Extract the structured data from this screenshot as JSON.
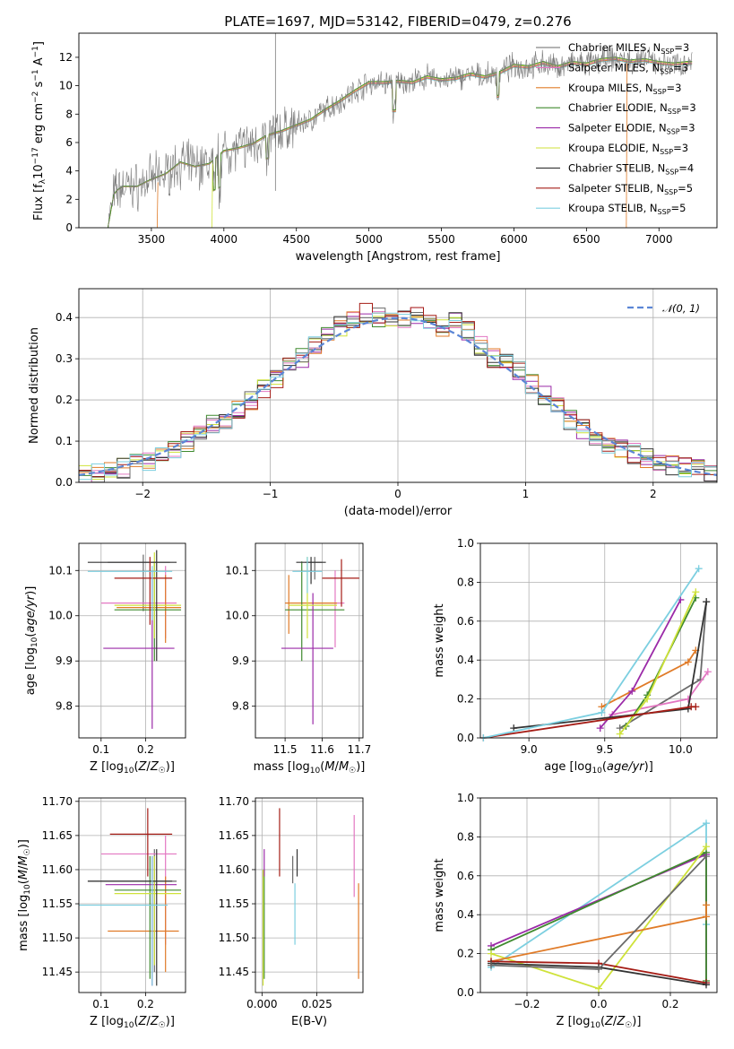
{
  "colors": {
    "Chabrier MILES": "#6a6a6a",
    "Salpeter MILES": "#e377c2",
    "Kroupa MILES": "#e07b28",
    "Chabrier ELODIE": "#3f8a2e",
    "Salpeter ELODIE": "#9b2aa8",
    "Kroupa ELODIE": "#cfe23a",
    "Chabrier STELIB": "#333333",
    "Salpeter STELIB": "#a51d16",
    "Kroupa STELIB": "#7ccfe0",
    "normal": "#5b86d6"
  },
  "chart_data": [
    {
      "type": "line",
      "title": "PLATE=1697, MJD=53142, FIBERID=0479, z=0.276",
      "xlabel": "wavelength [Angstrom, rest frame]",
      "ylabel": "Flux [f_λ 10^-17 erg cm^-2 s^-1 A^-1]",
      "xlim": [
        3000,
        7400
      ],
      "ylim": [
        0,
        13.7
      ],
      "xticks": [
        3500,
        4000,
        4500,
        5000,
        5500,
        6000,
        6500,
        7000
      ],
      "yticks": [
        0,
        2,
        4,
        6,
        8,
        10,
        12
      ],
      "legend_position": "right",
      "legend": [
        {
          "name": "Chabrier MILES",
          "sub": "SSP",
          "n": "3"
        },
        {
          "name": "Salpeter MILES",
          "sub": "SSP",
          "n": "3"
        },
        {
          "name": "Kroupa MILES",
          "sub": "SSP",
          "n": "3"
        },
        {
          "name": "Chabrier ELODIE",
          "sub": "SSP",
          "n": "3"
        },
        {
          "name": "Salpeter ELODIE",
          "sub": "SSP",
          "n": "3"
        },
        {
          "name": "Kroupa ELODIE",
          "sub": "SSP",
          "n": "3"
        },
        {
          "name": "Chabrier STELIB",
          "sub": "SSP",
          "n": "4"
        },
        {
          "name": "Salpeter STELIB",
          "sub": "SSP",
          "n": "5"
        },
        {
          "name": "Kroupa STELIB",
          "sub": "SSP",
          "n": "5"
        }
      ],
      "series": [
        {
          "name": "data",
          "x": [
            3200,
            3240,
            3260,
            3300,
            3400,
            3500,
            3600,
            3700,
            3800,
            3900,
            4000,
            4100,
            4200,
            4300,
            4400,
            4500,
            4600,
            4700,
            4800,
            4900,
            5000,
            5100,
            5200,
            5300,
            5400,
            5500,
            5600,
            5700,
            5800,
            5900,
            6000,
            6100,
            6200,
            6300,
            6400,
            6500,
            6600,
            6700,
            6800,
            6900,
            7000,
            7100,
            7200
          ],
          "y": [
            0,
            2.3,
            2.6,
            2.9,
            2.9,
            3.4,
            3.8,
            4.6,
            4.3,
            4.5,
            5.4,
            5.6,
            5.9,
            6.5,
            6.8,
            7.2,
            7.6,
            8.3,
            8.9,
            9.6,
            10.2,
            10.2,
            10.3,
            10.2,
            10.6,
            10.4,
            10.5,
            10.8,
            10.6,
            10.9,
            11.4,
            11.3,
            11.6,
            11.3,
            11.6,
            11.5,
            11.8,
            11.9,
            11.7,
            11.8,
            11.6,
            11.5,
            11.6
          ]
        }
      ]
    },
    {
      "type": "step",
      "xlabel": "(data-model)/error",
      "ylabel": "Normed distribution",
      "xlim": [
        -2.5,
        2.5
      ],
      "ylim": [
        0,
        0.47
      ],
      "xticks": [
        -2,
        -1,
        0,
        1,
        2
      ],
      "yticks": [
        0.0,
        0.1,
        0.2,
        0.3,
        0.4
      ],
      "legend": "𝒩(0, 1)",
      "legend_position": "top-right",
      "bin_edges": [
        -2.5,
        -2.4,
        -2.3,
        -2.2,
        -2.1,
        -2.0,
        -1.9,
        -1.8,
        -1.7,
        -1.6,
        -1.5,
        -1.4,
        -1.3,
        -1.2,
        -1.1,
        -1.0,
        -0.9,
        -0.8,
        -0.7,
        -0.6,
        -0.5,
        -0.4,
        -0.3,
        -0.2,
        -0.1,
        0.0,
        0.1,
        0.2,
        0.3,
        0.4,
        0.5,
        0.6,
        0.7,
        0.8,
        0.9,
        1.0,
        1.1,
        1.2,
        1.3,
        1.4,
        1.5,
        1.6,
        1.7,
        1.8,
        1.9,
        2.0,
        2.1,
        2.2,
        2.3,
        2.4,
        2.5
      ],
      "histogram_base": [
        0.02,
        0.025,
        0.03,
        0.035,
        0.045,
        0.05,
        0.06,
        0.08,
        0.1,
        0.12,
        0.14,
        0.15,
        0.18,
        0.2,
        0.23,
        0.25,
        0.28,
        0.3,
        0.33,
        0.36,
        0.38,
        0.4,
        0.41,
        0.4,
        0.39,
        0.4,
        0.41,
        0.39,
        0.37,
        0.4,
        0.37,
        0.33,
        0.3,
        0.29,
        0.27,
        0.24,
        0.21,
        0.18,
        0.15,
        0.13,
        0.11,
        0.09,
        0.08,
        0.07,
        0.06,
        0.05,
        0.04,
        0.035,
        0.03,
        0.025
      ]
    },
    {
      "type": "errorbar",
      "xlabel": "Z [log10(Z/Z☉)]",
      "ylabel": "age [log10(age/yr)]",
      "xlim": [
        0.05,
        0.29
      ],
      "ylim": [
        9.73,
        10.16
      ],
      "xticks": [
        0.1,
        0.2
      ],
      "yticks": [
        9.8,
        9.9,
        10.0,
        10.1
      ]
    },
    {
      "type": "errorbar",
      "xlabel": "mass [log10(M/M☉)]",
      "xlim": [
        11.42,
        11.71
      ],
      "ylim": [
        9.73,
        10.16
      ],
      "xticks": [
        11.5,
        11.6,
        11.7
      ],
      "yticks": [
        9.8,
        9.9,
        10.0,
        10.1
      ]
    },
    {
      "type": "line",
      "xlabel": "age [log10(age/yr)]",
      "ylabel": "mass weight",
      "xlim": [
        8.68,
        10.24
      ],
      "ylim": [
        0,
        1
      ],
      "xticks": [
        9.0,
        9.5,
        10.0
      ],
      "yticks": [
        0.0,
        0.2,
        0.4,
        0.6,
        0.8,
        1.0
      ],
      "series": [
        {
          "name": "Chabrier MILES",
          "x": [
            9.6,
            10.13,
            10.17
          ],
          "y": [
            0.05,
            0.3,
            0.7
          ]
        },
        {
          "name": "Salpeter MILES",
          "x": [
            9.55,
            10.05,
            10.18
          ],
          "y": [
            0.12,
            0.2,
            0.34
          ]
        },
        {
          "name": "Kroupa MILES",
          "x": [
            9.48,
            10.05,
            10.1
          ],
          "y": [
            0.16,
            0.39,
            0.45
          ]
        },
        {
          "name": "Chabrier ELODIE",
          "x": [
            9.64,
            9.78,
            10.1
          ],
          "y": [
            0.06,
            0.22,
            0.72
          ]
        },
        {
          "name": "Salpeter ELODIE",
          "x": [
            9.47,
            9.68,
            10.0
          ],
          "y": [
            0.05,
            0.24,
            0.71
          ]
        },
        {
          "name": "Kroupa ELODIE",
          "x": [
            9.6,
            9.78,
            10.1
          ],
          "y": [
            0.02,
            0.2,
            0.75
          ]
        },
        {
          "name": "Chabrier STELIB",
          "x": [
            8.9,
            10.05,
            10.17
          ],
          "y": [
            0.05,
            0.15,
            0.7
          ]
        },
        {
          "name": "Salpeter STELIB",
          "x": [
            8.7,
            10.07,
            10.1
          ],
          "y": [
            0.0,
            0.16,
            0.16
          ]
        },
        {
          "name": "Kroupa STELIB",
          "x": [
            8.7,
            9.48,
            10.12
          ],
          "y": [
            0.0,
            0.13,
            0.87
          ]
        }
      ]
    },
    {
      "type": "errorbar",
      "xlabel": "Z [log10(Z/Z☉)]",
      "ylabel": "mass [log10(M/M☉)]",
      "xlim": [
        0.05,
        0.29
      ],
      "ylim": [
        11.42,
        11.705
      ],
      "xticks": [
        0.1,
        0.2
      ],
      "yticks": [
        11.45,
        11.5,
        11.55,
        11.6,
        11.65,
        11.7
      ]
    },
    {
      "type": "errorbar",
      "xlabel": "E(B-V)",
      "xlim": [
        -0.003,
        0.046
      ],
      "ylim": [
        11.42,
        11.705
      ],
      "xticks": [
        0.0,
        0.025
      ],
      "yticks": [
        11.45,
        11.5,
        11.55,
        11.6,
        11.65,
        11.7
      ]
    },
    {
      "type": "line",
      "xlabel": "Z [log10(Z/Z☉)]",
      "ylabel": "mass weight",
      "xlim": [
        -0.33,
        0.33
      ],
      "ylim": [
        0,
        1
      ],
      "xticks": [
        -0.2,
        0.0,
        0.2
      ],
      "yticks": [
        0.0,
        0.2,
        0.4,
        0.6,
        0.8,
        1.0
      ],
      "series": [
        {
          "name": "Kroupa STELIB",
          "x": [
            -0.3,
            0.3,
            0.3
          ],
          "y": [
            0.13,
            0.87,
            0.35
          ]
        },
        {
          "name": "Salpeter ELODIE",
          "x": [
            -0.3,
            0.3,
            0.3
          ],
          "y": [
            0.24,
            0.71,
            0.05
          ]
        },
        {
          "name": "Chabrier ELODIE",
          "x": [
            -0.3,
            0.3,
            0.3
          ],
          "y": [
            0.22,
            0.72,
            0.06
          ]
        },
        {
          "name": "Kroupa ELODIE",
          "x": [
            -0.3,
            0.0,
            0.3
          ],
          "y": [
            0.2,
            0.02,
            0.75
          ]
        },
        {
          "name": "Kroupa MILES",
          "x": [
            -0.3,
            0.3,
            0.3
          ],
          "y": [
            0.16,
            0.39,
            0.45
          ]
        },
        {
          "name": "Salpeter STELIB",
          "x": [
            -0.3,
            0.0,
            0.3
          ],
          "y": [
            0.16,
            0.15,
            0.05
          ]
        },
        {
          "name": "Chabrier STELIB",
          "x": [
            -0.3,
            0.0,
            0.3
          ],
          "y": [
            0.15,
            0.13,
            0.04
          ]
        },
        {
          "name": "Chabrier MILES",
          "x": [
            -0.3,
            0.0,
            0.3
          ],
          "y": [
            0.14,
            0.12,
            0.7
          ]
        }
      ]
    }
  ]
}
